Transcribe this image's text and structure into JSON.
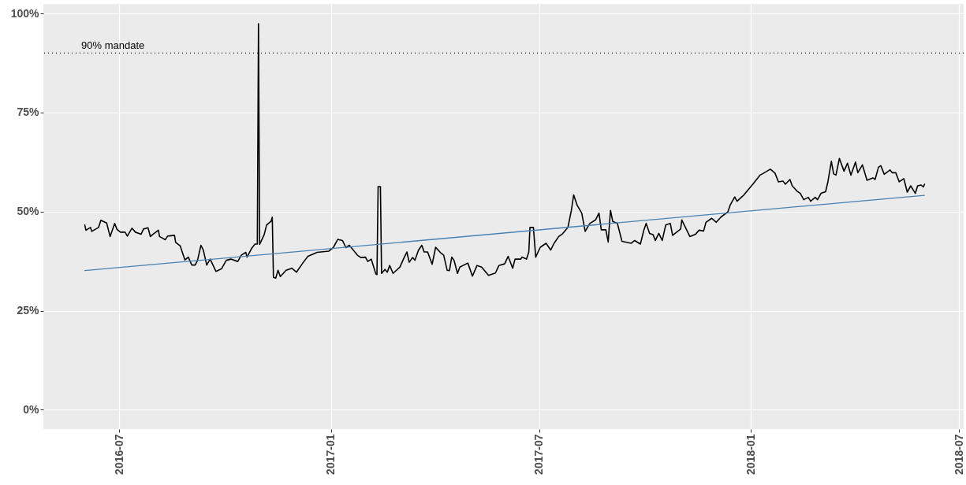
{
  "chart_data": {
    "type": "line",
    "xlim": [
      "2016-04-26",
      "2018-07-05"
    ],
    "ylim": [
      -4.9,
      102.4
    ],
    "xticks": [
      "2016-07",
      "2017-01",
      "2017-07",
      "2018-01",
      "2018-07"
    ],
    "yticks": [
      {
        "value": 0,
        "label": "0%"
      },
      {
        "value": 25,
        "label": "25%"
      },
      {
        "value": 50,
        "label": "50%"
      },
      {
        "value": 75,
        "label": "75%"
      },
      {
        "value": 100,
        "label": "100%"
      }
    ],
    "grid": true,
    "marker": "none",
    "series": [
      {
        "color": "#000000",
        "line_style": "solid",
        "x": [
          "2016-06-01",
          "2016-06-02",
          "2016-06-06",
          "2016-06-07",
          "2016-06-13",
          "2016-06-15",
          "2016-06-20",
          "2016-06-23",
          "2016-06-27",
          "2016-06-29",
          "2016-07-02",
          "2016-07-06",
          "2016-07-08",
          "2016-07-12",
          "2016-07-15",
          "2016-07-20",
          "2016-07-22",
          "2016-07-26",
          "2016-07-28",
          "2016-07-30",
          "2016-08-04",
          "2016-08-05",
          "2016-08-10",
          "2016-08-12",
          "2016-08-18",
          "2016-08-19",
          "2016-08-23",
          "2016-08-27",
          "2016-08-30",
          "2016-09-02",
          "2016-09-05",
          "2016-09-07",
          "2016-09-10",
          "2016-09-12",
          "2016-09-15",
          "2016-09-18",
          "2016-09-23",
          "2016-09-28",
          "2016-10-02",
          "2016-10-06",
          "2016-10-12",
          "2016-10-15",
          "2016-10-19",
          "2016-10-20",
          "2016-10-24",
          "2016-10-27",
          "2016-10-29",
          "2016-10-30",
          "2016-10-31",
          "2016-11-04",
          "2016-11-06",
          "2016-11-10",
          "2016-11-11",
          "2016-11-12",
          "2016-11-14",
          "2016-11-16",
          "2016-11-18",
          "2016-11-23",
          "2016-11-28",
          "2016-12-02",
          "2016-12-08",
          "2016-12-12",
          "2016-12-20",
          "2016-12-30",
          "2017-01-03",
          "2017-01-07",
          "2017-01-11",
          "2017-01-14",
          "2017-01-17",
          "2017-01-24",
          "2017-01-27",
          "2017-01-31",
          "2017-02-02",
          "2017-02-05",
          "2017-02-09",
          "2017-02-10",
          "2017-02-11",
          "2017-02-13",
          "2017-02-14",
          "2017-02-17",
          "2017-02-19",
          "2017-02-21",
          "2017-02-24",
          "2017-03-02",
          "2017-03-05",
          "2017-03-08",
          "2017-03-10",
          "2017-03-13",
          "2017-03-15",
          "2017-03-18",
          "2017-03-21",
          "2017-03-23",
          "2017-03-26",
          "2017-03-30",
          "2017-04-02",
          "2017-04-06",
          "2017-04-09",
          "2017-04-12",
          "2017-04-14",
          "2017-04-16",
          "2017-04-18",
          "2017-04-21",
          "2017-04-23",
          "2017-04-30",
          "2017-05-04",
          "2017-05-08",
          "2017-05-12",
          "2017-05-18",
          "2017-05-24",
          "2017-05-27",
          "2017-06-01",
          "2017-06-04",
          "2017-06-08",
          "2017-06-10",
          "2017-06-15",
          "2017-06-16",
          "2017-06-20",
          "2017-06-22",
          "2017-06-23",
          "2017-06-26",
          "2017-06-28",
          "2017-07-02",
          "2017-07-07",
          "2017-07-11",
          "2017-07-14",
          "2017-07-18",
          "2017-07-21",
          "2017-07-26",
          "2017-07-29",
          "2017-07-31",
          "2017-08-03",
          "2017-08-07",
          "2017-08-10",
          "2017-08-14",
          "2017-08-19",
          "2017-08-22",
          "2017-08-24",
          "2017-08-28",
          "2017-08-30",
          "2017-09-01",
          "2017-09-03",
          "2017-09-07",
          "2017-09-11",
          "2017-09-19",
          "2017-09-22",
          "2017-09-27",
          "2017-09-30",
          "2017-10-02",
          "2017-10-05",
          "2017-10-08",
          "2017-10-10",
          "2017-10-13",
          "2017-10-16",
          "2017-10-19",
          "2017-10-23",
          "2017-10-25",
          "2017-11-01",
          "2017-11-02",
          "2017-11-09",
          "2017-11-14",
          "2017-11-17",
          "2017-11-21",
          "2017-11-23",
          "2017-11-28",
          "2017-12-02",
          "2017-12-06",
          "2017-12-12",
          "2017-12-14",
          "2017-12-18",
          "2017-12-20",
          "2017-12-26",
          "2018-01-03",
          "2018-01-09",
          "2018-01-11",
          "2018-01-18",
          "2018-01-22",
          "2018-01-25",
          "2018-01-29",
          "2018-01-31",
          "2018-02-04",
          "2018-02-06",
          "2018-02-10",
          "2018-02-13",
          "2018-02-16",
          "2018-02-20",
          "2018-02-22",
          "2018-02-26",
          "2018-02-28",
          "2018-03-03",
          "2018-03-07",
          "2018-03-09",
          "2018-03-12",
          "2018-03-14",
          "2018-03-16",
          "2018-03-19",
          "2018-03-23",
          "2018-03-26",
          "2018-03-29",
          "2018-04-02",
          "2018-04-04",
          "2018-04-08",
          "2018-04-12",
          "2018-04-17",
          "2018-04-19",
          "2018-04-22",
          "2018-04-24",
          "2018-04-27",
          "2018-05-02",
          "2018-05-04",
          "2018-05-07",
          "2018-05-10",
          "2018-05-14",
          "2018-05-17",
          "2018-05-20",
          "2018-05-24",
          "2018-05-26",
          "2018-05-29",
          "2018-05-31",
          "2018-06-01"
        ],
        "values": [
          46.6,
          45.3,
          46.0,
          45.0,
          46.0,
          47.8,
          47.1,
          43.7,
          47.0,
          45.5,
          44.8,
          44.8,
          43.8,
          45.8,
          44.8,
          44.3,
          45.6,
          45.9,
          43.7,
          44.2,
          45.3,
          43.7,
          42.9,
          43.8,
          44.0,
          42.2,
          41.3,
          37.8,
          38.5,
          36.5,
          36.5,
          37.7,
          41.5,
          40.3,
          36.5,
          38.0,
          34.9,
          35.6,
          37.7,
          38.0,
          37.4,
          39.0,
          39.7,
          38.5,
          40.7,
          41.8,
          41.8,
          97.4,
          41.7,
          44.2,
          46.6,
          47.6,
          48.6,
          33.4,
          33.2,
          35.2,
          33.6,
          35.2,
          35.7,
          34.7,
          37.2,
          38.7,
          39.7,
          40.0,
          40.9,
          43.0,
          42.7,
          40.9,
          41.5,
          39.0,
          38.4,
          38.5,
          37.4,
          38.0,
          34.3,
          34.1,
          56.3,
          56.3,
          34.4,
          35.4,
          34.7,
          36.4,
          34.4,
          36.0,
          38.0,
          39.8,
          37.2,
          38.4,
          37.7,
          40.2,
          41.5,
          39.8,
          39.8,
          36.7,
          41.0,
          39.7,
          39.0,
          35.2,
          35.1,
          38.5,
          37.7,
          34.4,
          36.0,
          37.0,
          33.7,
          36.4,
          36.0,
          33.9,
          34.5,
          36.4,
          36.8,
          38.7,
          35.7,
          38.0,
          38.0,
          38.5,
          38.0,
          39.8,
          46.0,
          46.0,
          38.5,
          41.0,
          42.0,
          40.3,
          42.0,
          43.7,
          44.3,
          46.0,
          50.3,
          54.2,
          51.6,
          49.6,
          45.0,
          47.0,
          47.9,
          49.6,
          45.4,
          45.4,
          42.3,
          50.3,
          47.5,
          47.0,
          42.5,
          42.0,
          42.7,
          41.8,
          45.3,
          47.0,
          44.5,
          44.2,
          42.7,
          44.5,
          42.7,
          46.6,
          47.0,
          44.0,
          45.6,
          47.9,
          43.7,
          44.3,
          45.3,
          45.1,
          47.3,
          48.3,
          47.3,
          48.6,
          49.9,
          51.6,
          53.7,
          52.6,
          54.2,
          57.0,
          59.2,
          59.5,
          60.7,
          59.7,
          57.5,
          57.7,
          56.9,
          58.1,
          56.5,
          55.2,
          54.6,
          53.0,
          53.6,
          52.6,
          53.6,
          53.0,
          54.6,
          55.0,
          57.5,
          62.7,
          59.5,
          59.2,
          63.4,
          60.2,
          62.2,
          59.2,
          62.5,
          59.8,
          61.8,
          57.9,
          58.5,
          58.1,
          61.2,
          61.6,
          59.4,
          60.5,
          59.8,
          59.8,
          57.5,
          58.3,
          54.9,
          56.5,
          54.6,
          56.5,
          56.7,
          56.2,
          56.9
        ]
      },
      {
        "type": "line",
        "color": "#4682b4",
        "line_style": "solid",
        "x": [
          "2016-06-01",
          "2018-06-01"
        ],
        "values": [
          35.1,
          54.1
        ]
      }
    ],
    "ref_lines": [
      {
        "axis": "y",
        "value": 90,
        "label": "90% mandate",
        "color": "#000000",
        "line_style": "dotted"
      }
    ]
  }
}
